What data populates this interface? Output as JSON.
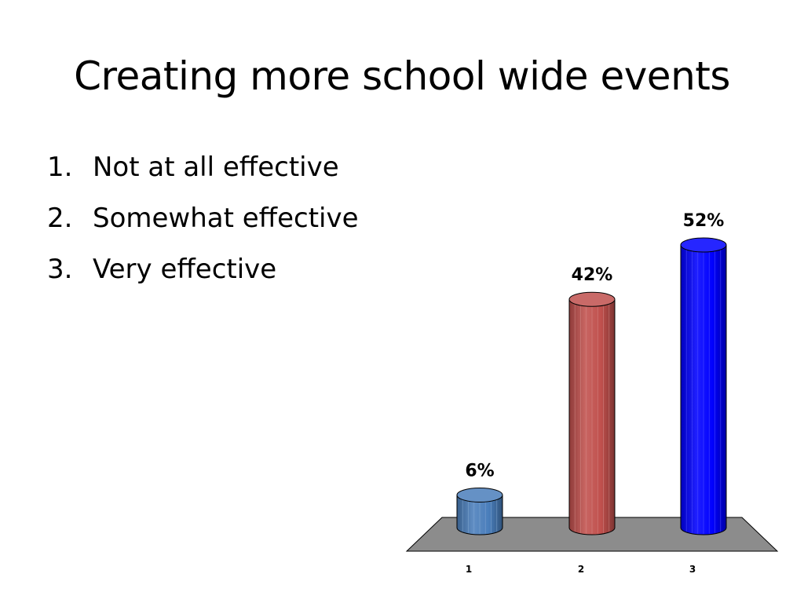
{
  "slide": {
    "title": "Creating more school wide events"
  },
  "options": [
    {
      "number": "1.",
      "label": "Not at all effective"
    },
    {
      "number": "2.",
      "label": "Somewhat effective"
    },
    {
      "number": "3.",
      "label": "Very effective"
    }
  ],
  "chart_data": {
    "type": "bar",
    "style": "3d-cylinder",
    "categories": [
      "1",
      "2",
      "3"
    ],
    "values": [
      6,
      42,
      52
    ],
    "data_labels": [
      "6%",
      "42%",
      "52%"
    ],
    "colors": [
      "#4a7ebb",
      "#c0504d",
      "#0000ff"
    ],
    "floor_color": "#8c8c8c",
    "grid": false,
    "legend": "none",
    "ylim": [
      0,
      52
    ]
  }
}
